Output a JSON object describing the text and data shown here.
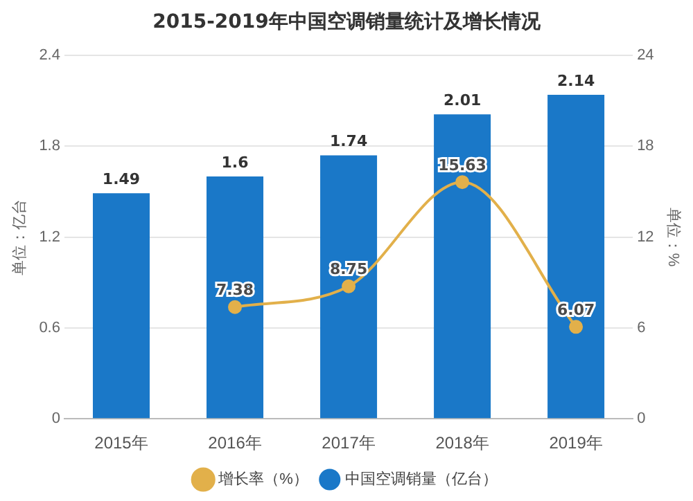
{
  "chart_data": {
    "type": "bar",
    "title": "2015-2019年中国空调销量统计及增长情况",
    "ylabel": "单位：亿台",
    "y2label": "单位：%",
    "categories": [
      "2015年",
      "2016年",
      "2017年",
      "2018年",
      "2019年"
    ],
    "series": [
      {
        "name": "中国空调销量（亿台）",
        "color": "#1a78c8",
        "values": [
          1.49,
          1.6,
          1.74,
          2.01,
          2.14
        ]
      },
      {
        "name": "增长率（%）",
        "type": "line",
        "axis": "y2",
        "color": "#e2b04a",
        "values": [
          null,
          7.38,
          8.75,
          15.63,
          6.07
        ]
      }
    ],
    "ylim": [
      0,
      2.4
    ],
    "yticks": [
      0,
      0.6,
      1.2,
      1.8,
      2.4
    ],
    "y2lim": [
      0,
      24
    ],
    "y2ticks": [
      0,
      6,
      12,
      18,
      24
    ],
    "grid": "y",
    "legend": "bottom",
    "marker": "circle",
    "data_labels": true
  }
}
